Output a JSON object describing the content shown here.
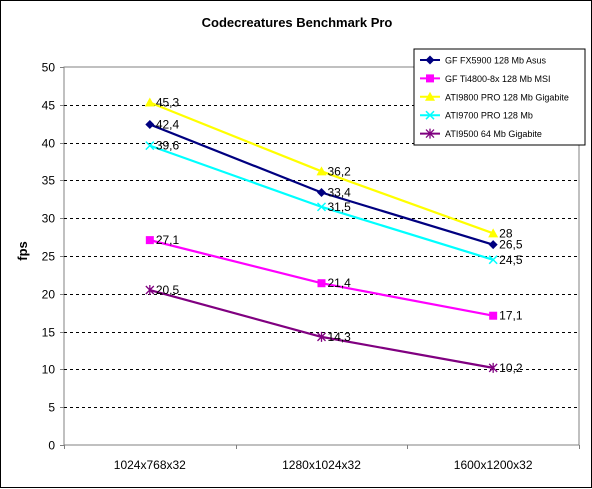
{
  "chart_data": {
    "type": "line",
    "title": "Codecreatures Benchmark Pro",
    "xlabel": "",
    "ylabel": "fps",
    "ylim": [
      0,
      50
    ],
    "yticks": [
      0,
      5,
      10,
      15,
      20,
      25,
      30,
      35,
      40,
      45,
      50
    ],
    "grid": true,
    "legend_position": "top-right",
    "categories": [
      "1024x768x32",
      "1280x1024x32",
      "1600x1200x32"
    ],
    "series": [
      {
        "name": "GF FX5900 128 Mb Asus",
        "values": [
          42.4,
          33.4,
          26.5
        ],
        "labels": [
          "42,4",
          "33,4",
          "26,5"
        ],
        "color": "#000080",
        "marker": "diamond"
      },
      {
        "name": "GF Ti4800-8x 128 Mb MSI",
        "values": [
          27.1,
          21.4,
          17.1
        ],
        "labels": [
          "27,1",
          "21,4",
          "17,1"
        ],
        "color": "#FF00FF",
        "marker": "square"
      },
      {
        "name": "ATI9800 PRO 128 Mb Gigabite",
        "values": [
          45.3,
          36.2,
          28
        ],
        "labels": [
          "45,3",
          "36,2",
          "28"
        ],
        "color": "#FFFF00",
        "marker": "triangle"
      },
      {
        "name": "ATI9700 PRO 128 Mb",
        "values": [
          39.6,
          31.5,
          24.5
        ],
        "labels": [
          "39,6",
          "31,5",
          "24,5"
        ],
        "color": "#00FFFF",
        "marker": "x"
      },
      {
        "name": "ATI9500 64 Mb Gigabite",
        "values": [
          20.5,
          14.3,
          10.2
        ],
        "labels": [
          "20,5",
          "14,3",
          "10,2"
        ],
        "color": "#800080",
        "marker": "star"
      }
    ],
    "colors": {
      "plot_background": "#FFFFFF",
      "grid": "#000000",
      "axis": "#808080"
    }
  }
}
